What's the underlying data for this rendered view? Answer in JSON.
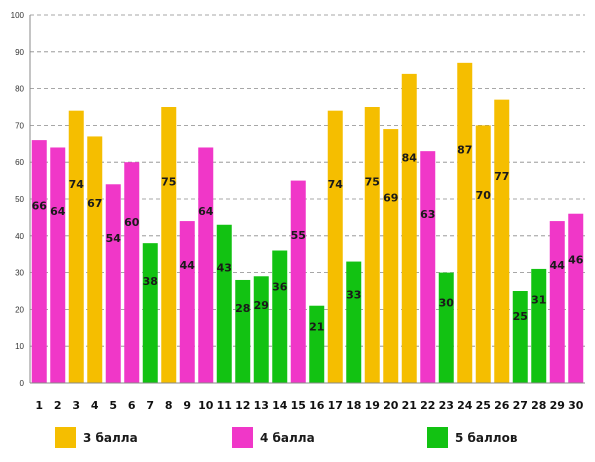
{
  "chart_data": {
    "type": "bar",
    "categories": [
      "1",
      "2",
      "3",
      "4",
      "5",
      "6",
      "7",
      "8",
      "9",
      "10",
      "11",
      "12",
      "13",
      "14",
      "15",
      "16",
      "17",
      "18",
      "19",
      "20",
      "21",
      "22",
      "23",
      "24",
      "25",
      "26",
      "27",
      "28",
      "29",
      "30"
    ],
    "values": [
      66,
      64,
      74,
      67,
      54,
      60,
      38,
      75,
      44,
      64,
      43,
      28,
      29,
      36,
      55,
      21,
      74,
      33,
      75,
      69,
      84,
      63,
      30,
      87,
      70,
      77,
      25,
      31,
      44,
      46
    ],
    "grades": [
      "4 балла",
      "4 балла",
      "3 балла",
      "3 балла",
      "4 балла",
      "4 балла",
      "5 баллов",
      "3 балла",
      "4 балла",
      "4 балла",
      "5 баллов",
      "5 баллов",
      "5 баллов",
      "5 баллов",
      "4 балла",
      "5 баллов",
      "3 балла",
      "5 баллов",
      "3 балла",
      "3 балла",
      "3 балла",
      "4 балла",
      "5 баллов",
      "3 балла",
      "3 балла",
      "3 балла",
      "5 баллов",
      "5 баллов",
      "4 балла",
      "4 балла"
    ],
    "ylim": [
      0,
      100
    ],
    "yticks": [
      0,
      10,
      20,
      30,
      40,
      50,
      60,
      70,
      80,
      90,
      100
    ],
    "grid": true,
    "grid_style": "dashed",
    "legend_position": "bottom",
    "legend": [
      {
        "name": "3 балла",
        "color": "#F5BE00"
      },
      {
        "name": "4 балла",
        "color": "#F037C8"
      },
      {
        "name": "5 баллов",
        "color": "#12C212"
      }
    ],
    "title": "",
    "xlabel": "",
    "ylabel": ""
  }
}
